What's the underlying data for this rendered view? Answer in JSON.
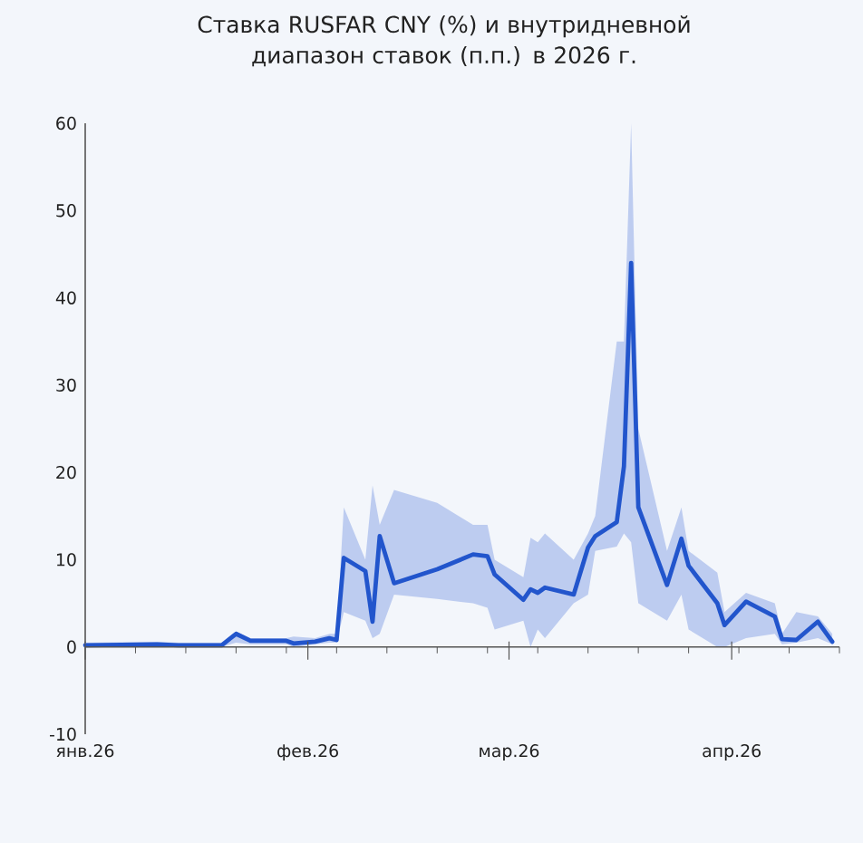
{
  "chart_data": {
    "type": "line",
    "title": "Ставка RUSFAR CNY (%) и внутридневной диапазон ставок (п.п.) в 2026 г.",
    "x": [
      "2026-01-01",
      "2026-01-11",
      "2026-01-14",
      "2026-01-20",
      "2026-01-22",
      "2026-01-24",
      "2026-01-29",
      "2026-01-30",
      "2026-02-02",
      "2026-02-04",
      "2026-02-05",
      "2026-02-06",
      "2026-02-09",
      "2026-02-10",
      "2026-02-11",
      "2026-02-13",
      "2026-02-19",
      "2026-02-24",
      "2026-02-26",
      "2026-02-27",
      "2026-03-03",
      "2026-03-04",
      "2026-03-05",
      "2026-03-06",
      "2026-03-10",
      "2026-03-12",
      "2026-03-13",
      "2026-03-16",
      "2026-03-17",
      "2026-03-18",
      "2026-03-19",
      "2026-03-23",
      "2026-03-25",
      "2026-03-26",
      "2026-03-30",
      "2026-03-31",
      "2026-04-03",
      "2026-04-07",
      "2026-04-08",
      "2026-04-10",
      "2026-04-13",
      "2026-04-15"
    ],
    "series": [
      {
        "color": "#2255cc",
        "values": [
          0.2,
          0.3,
          0.2,
          0.2,
          1.5,
          0.7,
          0.7,
          0.4,
          0.6,
          1.0,
          0.8,
          10.2,
          8.7,
          2.9,
          12.7,
          7.3,
          8.9,
          10.6,
          10.4,
          8.3,
          5.4,
          6.6,
          6.2,
          6.8,
          6.0,
          11.4,
          12.7,
          14.3,
          20.7,
          44.0,
          16.0,
          7.1,
          12.4,
          9.3,
          5.0,
          2.5,
          5.2,
          3.5,
          0.9,
          0.8,
          2.9,
          0.6
        ],
        "upper": [
          0.5,
          0.6,
          0.5,
          0.5,
          1.8,
          1.0,
          1.0,
          1.2,
          1.0,
          1.5,
          1.5,
          16.0,
          10.0,
          18.5,
          14.0,
          18.0,
          16.5,
          14.0,
          14.0,
          10.0,
          8.0,
          12.5,
          12.0,
          13.0,
          10.0,
          13.0,
          15.0,
          35.0,
          35.0,
          60.0,
          25.0,
          11.0,
          16.0,
          11.0,
          8.5,
          4.0,
          6.2,
          5.0,
          1.5,
          4.0,
          3.5,
          1.5
        ],
        "lower": [
          0.0,
          0.1,
          0.1,
          0.0,
          0.5,
          0.3,
          0.3,
          0.0,
          0.3,
          0.5,
          0.5,
          4.0,
          3.0,
          1.0,
          1.5,
          6.0,
          5.5,
          5.0,
          4.5,
          2.0,
          3.0,
          0.0,
          2.0,
          1.0,
          5.0,
          6.0,
          11.0,
          11.5,
          13.0,
          12.0,
          5.0,
          3.0,
          6.0,
          2.0,
          0.0,
          0.0,
          1.0,
          1.5,
          0.3,
          0.5,
          1.0,
          0.3
        ]
      }
    ],
    "xlim": [
      "2026-01-01",
      "2026-04-16"
    ],
    "xticks": [
      {
        "value": "2026-01-01",
        "label": "янв.26"
      },
      {
        "value": "2026-01-08",
        "label": null
      },
      {
        "value": "2026-01-15",
        "label": null
      },
      {
        "value": "2026-01-22",
        "label": null
      },
      {
        "value": "2026-01-29",
        "label": null
      },
      {
        "value": "2026-02-01",
        "label": "фев.26"
      },
      {
        "value": "2026-02-05",
        "label": null
      },
      {
        "value": "2026-02-12",
        "label": null
      },
      {
        "value": "2026-02-19",
        "label": null
      },
      {
        "value": "2026-02-26",
        "label": null
      },
      {
        "value": "2026-03-01",
        "label": "мар.26"
      },
      {
        "value": "2026-03-05",
        "label": null
      },
      {
        "value": "2026-03-12",
        "label": null
      },
      {
        "value": "2026-03-19",
        "label": null
      },
      {
        "value": "2026-03-26",
        "label": null
      },
      {
        "value": "2026-04-01",
        "label": "апр.26"
      },
      {
        "value": "2026-04-02",
        "label": null
      },
      {
        "value": "2026-04-09",
        "label": null
      },
      {
        "value": "2026-04-16",
        "label": null
      }
    ],
    "ylim": [
      -10,
      60
    ],
    "yticks": [
      -10,
      0,
      10,
      20,
      30,
      40,
      50,
      60
    ]
  }
}
